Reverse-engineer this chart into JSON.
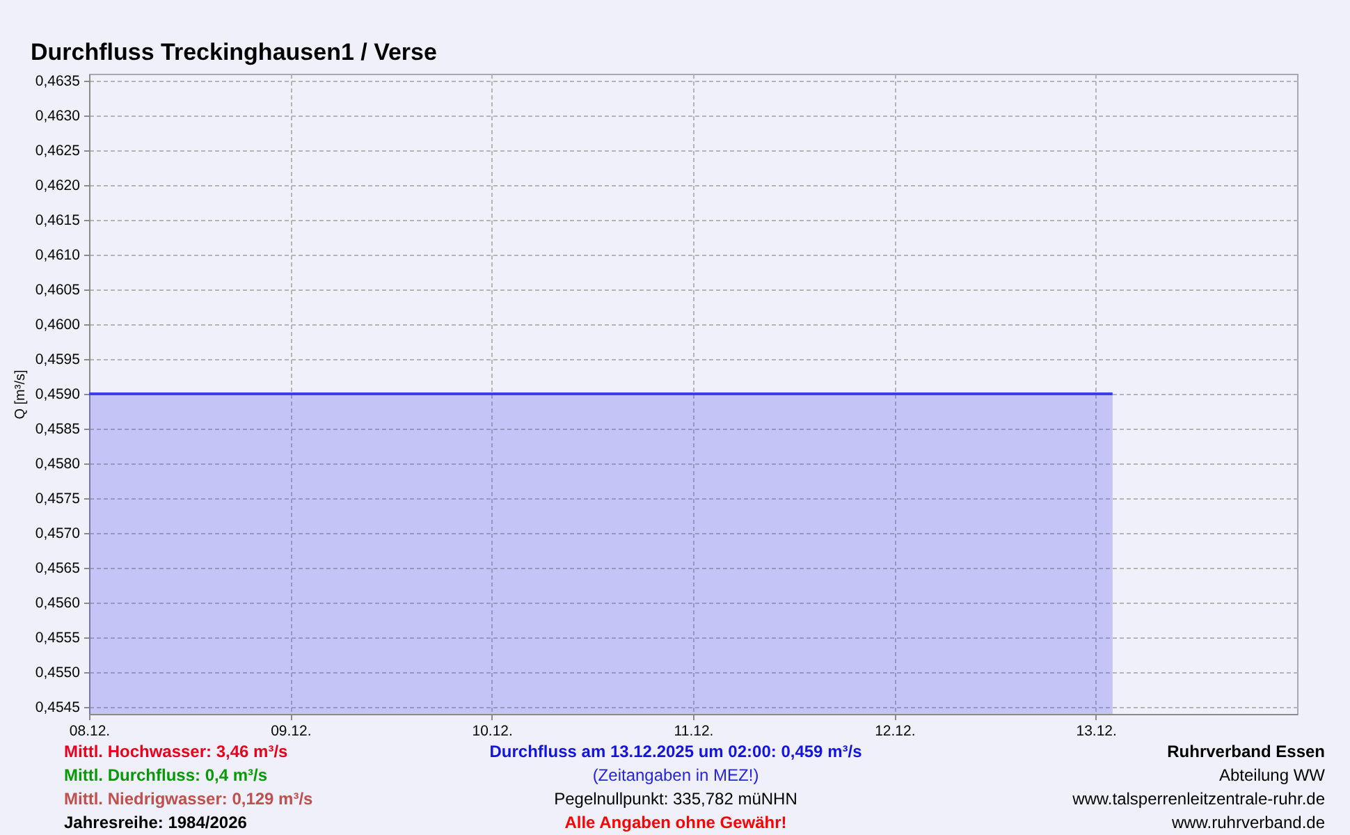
{
  "chart_data": {
    "type": "area",
    "title": "Durchfluss Treckinghausen1 / Verse",
    "ylabel": "Q [m³/s]",
    "x": [
      "2025-12-08T00:00",
      "2025-12-13T02:00"
    ],
    "series": [
      {
        "color": "#3c3cf0",
        "values": [
          0.459,
          0.459
        ]
      }
    ],
    "xlim": [
      "2025-12-08",
      "2025-12-14"
    ],
    "xticks": [
      {
        "value": "2025-12-08",
        "label": "08.12."
      },
      {
        "value": "2025-12-09",
        "label": "09.12."
      },
      {
        "value": "2025-12-10",
        "label": "10.12."
      },
      {
        "value": "2025-12-11",
        "label": "11.12."
      },
      {
        "value": "2025-12-12",
        "label": "12.12."
      },
      {
        "value": "2025-12-13",
        "label": "13.12."
      }
    ],
    "ylim": [
      0.4544,
      0.4636
    ],
    "yticks": [
      {
        "value": 0.4545,
        "label": "0,4545"
      },
      {
        "value": 0.455,
        "label": "0,4550"
      },
      {
        "value": 0.4555,
        "label": "0,4555"
      },
      {
        "value": 0.456,
        "label": "0,4560"
      },
      {
        "value": 0.4565,
        "label": "0,4565"
      },
      {
        "value": 0.457,
        "label": "0,4570"
      },
      {
        "value": 0.4575,
        "label": "0,4575"
      },
      {
        "value": 0.458,
        "label": "0,4580"
      },
      {
        "value": 0.4585,
        "label": "0,4585"
      },
      {
        "value": 0.459,
        "label": "0,4590"
      },
      {
        "value": 0.4595,
        "label": "0,4595"
      },
      {
        "value": 0.46,
        "label": "0,4600"
      },
      {
        "value": 0.4605,
        "label": "0,4605"
      },
      {
        "value": 0.461,
        "label": "0,4610"
      },
      {
        "value": 0.4615,
        "label": "0,4615"
      },
      {
        "value": 0.462,
        "label": "0,4620"
      },
      {
        "value": 0.4625,
        "label": "0,4625"
      },
      {
        "value": 0.463,
        "label": "0,4630"
      },
      {
        "value": 0.4635,
        "label": "0,4635"
      }
    ],
    "grid": true,
    "annotations": [
      "Mittl. Hochwasser: 3,46 m³/s",
      "Mittl. Durchfluss: 0,4 m³/s",
      "Mittl. Niedrigwasser: 0,129 m³/s",
      "Jahresreihe: 1984/2026",
      "Durchfluss am 13.12.2025 um 02:00: 0,459 m³/s",
      "(Zeitangaben in MEZ!)",
      "Pegelnullpunkt: 335,782 müNHN",
      "Alle Angaben ohne Gewähr!",
      "Ruhrverband Essen",
      "Abteilung WW",
      "www.talsperrenleitzentrale-ruhr.de",
      "www.ruhrverband.de"
    ]
  }
}
